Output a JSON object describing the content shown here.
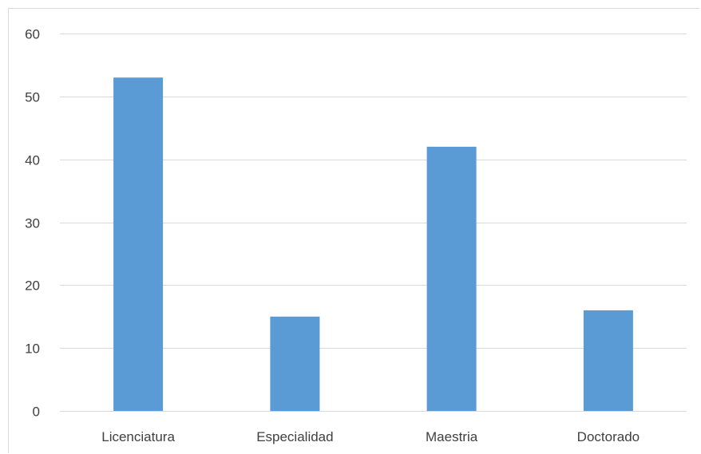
{
  "chart_data": {
    "type": "bar",
    "categories": [
      "Licenciatura",
      "Especialidad",
      "Maestria",
      "Doctorado"
    ],
    "values": [
      53,
      15,
      42,
      16
    ],
    "title": "",
    "xlabel": "",
    "ylabel": "",
    "ylim": [
      0,
      60
    ],
    "yticks": [
      0,
      10,
      20,
      30,
      40,
      50,
      60
    ],
    "grid": true,
    "legend": "none",
    "bar_color": "#5b9bd5",
    "grid_color": "#d9d9d9",
    "label_color": "#404040"
  }
}
